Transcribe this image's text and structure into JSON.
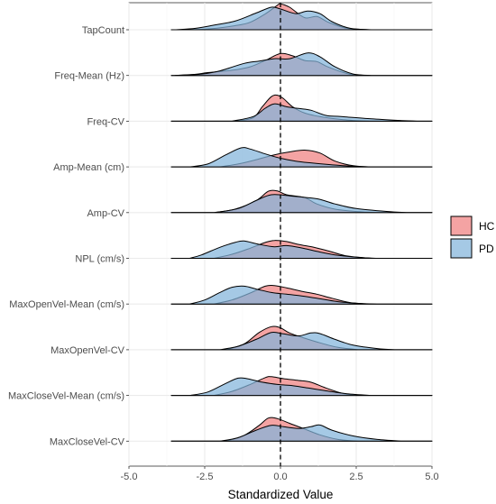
{
  "chart_data": {
    "type": "ridgeline",
    "title": "",
    "xlabel": "Standardized Value",
    "ylabel": "",
    "xlim": [
      -5.0,
      5.0
    ],
    "x_ticks": [
      -5.0,
      -2.5,
      0.0,
      2.5,
      5.0
    ],
    "x_tick_labels": [
      "-5.0",
      "-2.5",
      "0.0",
      "2.5",
      "5.0"
    ],
    "reference_line_x": 0,
    "grid": true,
    "legend_position": "right",
    "categories": [
      "TapCount",
      "Freq-Mean (Hz)",
      "Freq-CV",
      "Amp-Mean (cm)",
      "Amp-CV",
      "NPL (cm/s)",
      "MaxOpenVel-Mean (cm/s)",
      "MaxOpenVel-CV",
      "MaxCloseVel-Mean (cm/s)",
      "MaxCloseVel-CV"
    ],
    "series": [
      {
        "name": "HC",
        "color": "#F08080"
      },
      {
        "name": "PD",
        "color": "#82B4DB"
      }
    ],
    "densities": [
      {
        "category": "TapCount",
        "HC": [
          [
            -3.5,
            0
          ],
          [
            -2.5,
            0.02
          ],
          [
            -1.5,
            0.14
          ],
          [
            -1.0,
            0.26
          ],
          [
            -0.5,
            0.55
          ],
          [
            -0.1,
            0.85
          ],
          [
            0.0,
            0.9
          ],
          [
            0.3,
            0.78
          ],
          [
            0.8,
            0.42
          ],
          [
            1.2,
            0.46
          ],
          [
            1.6,
            0.25
          ],
          [
            2.2,
            0.05
          ],
          [
            3.0,
            0
          ]
        ],
        "PD": [
          [
            -3.5,
            0
          ],
          [
            -2.8,
            0.05
          ],
          [
            -2.2,
            0.16
          ],
          [
            -1.5,
            0.3
          ],
          [
            -0.8,
            0.58
          ],
          [
            -0.3,
            0.78
          ],
          [
            0.0,
            0.72
          ],
          [
            0.5,
            0.56
          ],
          [
            0.9,
            0.65
          ],
          [
            1.3,
            0.56
          ],
          [
            1.7,
            0.28
          ],
          [
            2.3,
            0.05
          ],
          [
            3.0,
            0
          ]
        ]
      },
      {
        "category": "Freq-Mean (Hz)",
        "HC": [
          [
            -3.5,
            0
          ],
          [
            -2.8,
            0.04
          ],
          [
            -2.4,
            0.1
          ],
          [
            -1.6,
            0.18
          ],
          [
            -1.0,
            0.3
          ],
          [
            -0.5,
            0.52
          ],
          [
            0.0,
            0.76
          ],
          [
            0.4,
            0.68
          ],
          [
            0.8,
            0.52
          ],
          [
            1.2,
            0.48
          ],
          [
            1.6,
            0.28
          ],
          [
            2.3,
            0.04
          ],
          [
            3.0,
            0
          ]
        ],
        "PD": [
          [
            -3.5,
            0
          ],
          [
            -2.6,
            0.05
          ],
          [
            -2.0,
            0.16
          ],
          [
            -1.2,
            0.42
          ],
          [
            -0.7,
            0.5
          ],
          [
            -0.2,
            0.58
          ],
          [
            0.3,
            0.58
          ],
          [
            0.9,
            0.78
          ],
          [
            1.3,
            0.65
          ],
          [
            1.8,
            0.3
          ],
          [
            2.4,
            0.05
          ],
          [
            3.0,
            0
          ]
        ]
      },
      {
        "category": "Freq-CV",
        "HC": [
          [
            -1.5,
            0
          ],
          [
            -0.9,
            0.12
          ],
          [
            -0.6,
            0.5
          ],
          [
            -0.3,
            0.85
          ],
          [
            -0.1,
            0.9
          ],
          [
            0.1,
            0.78
          ],
          [
            0.4,
            0.5
          ],
          [
            0.8,
            0.28
          ],
          [
            1.4,
            0.14
          ],
          [
            2.2,
            0.04
          ],
          [
            3.0,
            0
          ]
        ],
        "PD": [
          [
            -1.6,
            0
          ],
          [
            -0.9,
            0.16
          ],
          [
            -0.5,
            0.45
          ],
          [
            -0.2,
            0.6
          ],
          [
            0.2,
            0.5
          ],
          [
            0.6,
            0.44
          ],
          [
            1.0,
            0.38
          ],
          [
            1.5,
            0.2
          ],
          [
            2.0,
            0.16
          ],
          [
            3.0,
            0.08
          ],
          [
            4.0,
            0.02
          ],
          [
            4.6,
            0
          ]
        ]
      },
      {
        "category": "Amp-Mean (cm)",
        "HC": [
          [
            -2.0,
            0
          ],
          [
            -1.4,
            0.1
          ],
          [
            -0.8,
            0.25
          ],
          [
            -0.2,
            0.42
          ],
          [
            0.3,
            0.52
          ],
          [
            0.8,
            0.58
          ],
          [
            1.3,
            0.48
          ],
          [
            1.8,
            0.2
          ],
          [
            2.4,
            0.04
          ],
          [
            3.0,
            0
          ]
        ],
        "PD": [
          [
            -3.0,
            0
          ],
          [
            -2.4,
            0.1
          ],
          [
            -1.8,
            0.42
          ],
          [
            -1.3,
            0.66
          ],
          [
            -1.0,
            0.62
          ],
          [
            -0.5,
            0.45
          ],
          [
            0.0,
            0.3
          ],
          [
            0.5,
            0.2
          ],
          [
            1.0,
            0.14
          ],
          [
            1.6,
            0.08
          ],
          [
            2.4,
            0.02
          ],
          [
            3.0,
            0
          ]
        ]
      },
      {
        "category": "Amp-CV",
        "HC": [
          [
            -2.2,
            0
          ],
          [
            -1.5,
            0.12
          ],
          [
            -0.8,
            0.42
          ],
          [
            -0.4,
            0.74
          ],
          [
            -0.1,
            0.75
          ],
          [
            0.2,
            0.62
          ],
          [
            0.8,
            0.52
          ],
          [
            1.2,
            0.3
          ],
          [
            1.8,
            0.12
          ],
          [
            2.6,
            0.03
          ],
          [
            3.2,
            0
          ]
        ],
        "PD": [
          [
            -2.2,
            0
          ],
          [
            -1.4,
            0.14
          ],
          [
            -0.8,
            0.42
          ],
          [
            -0.3,
            0.62
          ],
          [
            0.3,
            0.58
          ],
          [
            0.9,
            0.52
          ],
          [
            1.3,
            0.46
          ],
          [
            1.8,
            0.3
          ],
          [
            2.5,
            0.14
          ],
          [
            3.5,
            0.04
          ],
          [
            4.2,
            0
          ]
        ]
      },
      {
        "category": "NPL (cm/s)",
        "HC": [
          [
            -2.2,
            0
          ],
          [
            -1.6,
            0.14
          ],
          [
            -1.0,
            0.35
          ],
          [
            -0.5,
            0.55
          ],
          [
            -0.2,
            0.62
          ],
          [
            0.2,
            0.58
          ],
          [
            0.6,
            0.48
          ],
          [
            1.1,
            0.38
          ],
          [
            1.6,
            0.25
          ],
          [
            2.2,
            0.08
          ],
          [
            3.0,
            0
          ]
        ],
        "PD": [
          [
            -3.0,
            0
          ],
          [
            -2.6,
            0.12
          ],
          [
            -2.0,
            0.38
          ],
          [
            -1.5,
            0.55
          ],
          [
            -1.2,
            0.6
          ],
          [
            -0.7,
            0.48
          ],
          [
            -0.2,
            0.4
          ],
          [
            0.2,
            0.44
          ],
          [
            0.7,
            0.36
          ],
          [
            1.2,
            0.24
          ],
          [
            1.8,
            0.12
          ],
          [
            2.6,
            0.03
          ],
          [
            3.2,
            0
          ]
        ]
      },
      {
        "category": "MaxOpenVel-Mean (cm/s)",
        "HC": [
          [
            -2.2,
            0
          ],
          [
            -1.6,
            0.14
          ],
          [
            -1.0,
            0.38
          ],
          [
            -0.5,
            0.62
          ],
          [
            -0.2,
            0.64
          ],
          [
            0.2,
            0.56
          ],
          [
            0.7,
            0.44
          ],
          [
            1.2,
            0.34
          ],
          [
            1.7,
            0.2
          ],
          [
            2.3,
            0.05
          ],
          [
            3.0,
            0
          ]
        ],
        "PD": [
          [
            -3.0,
            0
          ],
          [
            -2.5,
            0.14
          ],
          [
            -2.0,
            0.4
          ],
          [
            -1.6,
            0.58
          ],
          [
            -1.2,
            0.62
          ],
          [
            -0.8,
            0.52
          ],
          [
            -0.3,
            0.4
          ],
          [
            0.2,
            0.34
          ],
          [
            0.7,
            0.28
          ],
          [
            1.2,
            0.2
          ],
          [
            1.9,
            0.08
          ],
          [
            2.6,
            0.02
          ],
          [
            3.2,
            0
          ]
        ]
      },
      {
        "category": "MaxOpenVel-CV",
        "HC": [
          [
            -1.8,
            0
          ],
          [
            -1.2,
            0.2
          ],
          [
            -0.7,
            0.6
          ],
          [
            -0.3,
            0.8
          ],
          [
            0.0,
            0.76
          ],
          [
            0.3,
            0.58
          ],
          [
            0.8,
            0.4
          ],
          [
            1.3,
            0.24
          ],
          [
            1.9,
            0.08
          ],
          [
            2.6,
            0
          ]
        ],
        "PD": [
          [
            -2.0,
            0
          ],
          [
            -1.4,
            0.12
          ],
          [
            -0.8,
            0.36
          ],
          [
            -0.3,
            0.6
          ],
          [
            0.1,
            0.55
          ],
          [
            0.6,
            0.48
          ],
          [
            1.0,
            0.58
          ],
          [
            1.3,
            0.56
          ],
          [
            1.8,
            0.36
          ],
          [
            2.4,
            0.16
          ],
          [
            3.2,
            0.04
          ],
          [
            3.8,
            0
          ]
        ]
      },
      {
        "category": "MaxCloseVel-Mean (cm/s)",
        "HC": [
          [
            -2.2,
            0
          ],
          [
            -1.6,
            0.14
          ],
          [
            -1.0,
            0.38
          ],
          [
            -0.5,
            0.62
          ],
          [
            -0.3,
            0.65
          ],
          [
            0.1,
            0.58
          ],
          [
            0.6,
            0.52
          ],
          [
            1.0,
            0.46
          ],
          [
            1.5,
            0.26
          ],
          [
            2.1,
            0.06
          ],
          [
            2.8,
            0
          ]
        ],
        "PD": [
          [
            -3.0,
            0
          ],
          [
            -2.4,
            0.12
          ],
          [
            -1.8,
            0.42
          ],
          [
            -1.4,
            0.6
          ],
          [
            -1.1,
            0.58
          ],
          [
            -0.6,
            0.46
          ],
          [
            -0.1,
            0.38
          ],
          [
            0.4,
            0.34
          ],
          [
            0.9,
            0.26
          ],
          [
            1.5,
            0.16
          ],
          [
            2.2,
            0.06
          ],
          [
            3.0,
            0
          ]
        ]
      },
      {
        "category": "MaxCloseVel-CV",
        "HC": [
          [
            -1.8,
            0
          ],
          [
            -1.2,
            0.2
          ],
          [
            -0.7,
            0.55
          ],
          [
            -0.4,
            0.8
          ],
          [
            -0.1,
            0.78
          ],
          [
            0.3,
            0.62
          ],
          [
            0.8,
            0.42
          ],
          [
            1.3,
            0.22
          ],
          [
            1.9,
            0.06
          ],
          [
            2.6,
            0
          ]
        ],
        "PD": [
          [
            -2.0,
            0
          ],
          [
            -1.4,
            0.12
          ],
          [
            -0.8,
            0.38
          ],
          [
            -0.3,
            0.55
          ],
          [
            0.1,
            0.5
          ],
          [
            0.6,
            0.44
          ],
          [
            1.0,
            0.5
          ],
          [
            1.3,
            0.56
          ],
          [
            1.7,
            0.38
          ],
          [
            2.4,
            0.18
          ],
          [
            3.2,
            0.06
          ],
          [
            4.0,
            0
          ]
        ]
      }
    ]
  }
}
